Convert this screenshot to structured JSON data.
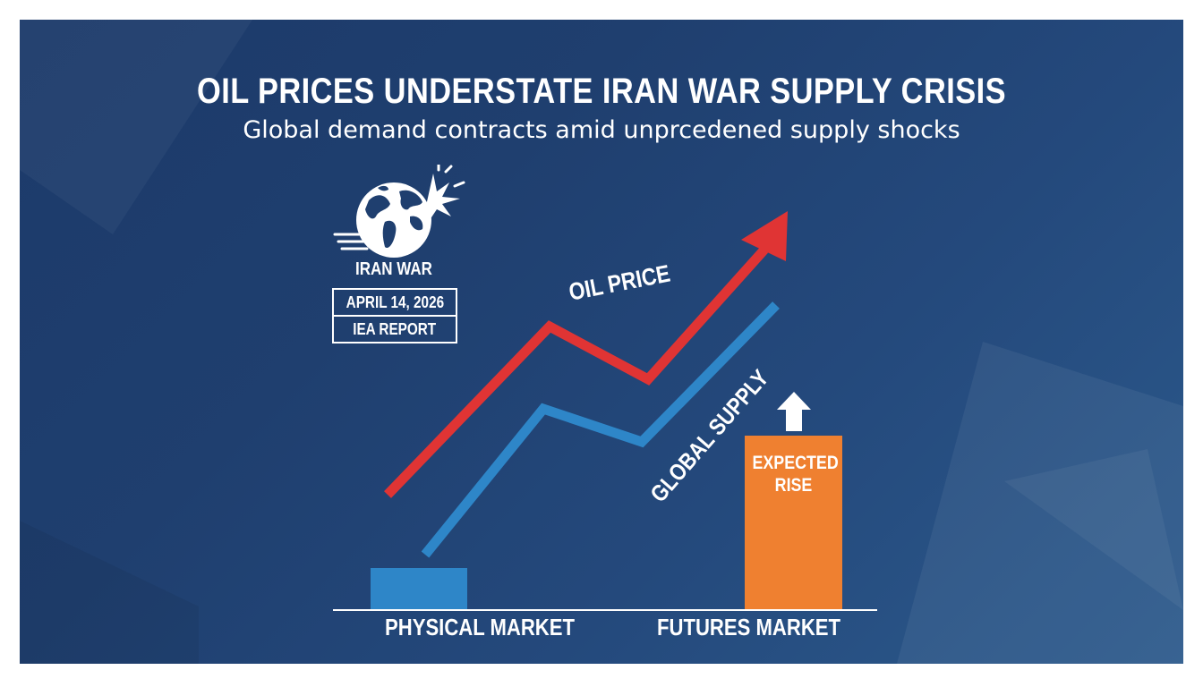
{
  "header": {
    "title": "OIL PRICES UNDERSTATE IRAN WAR SUPPLY CRISIS",
    "subtitle": "Global demand contracts amid unprcedened supply shocks"
  },
  "badge": {
    "icon": "globe-explosion-icon",
    "label": "IRAN WAR",
    "date": "APRIL 14, 2026",
    "source": "IEA REPORT"
  },
  "graphic": {
    "oil_price_label": "OIL PRICE",
    "supply_label": "GLOBAL SUPPLY",
    "futures_bar_label": [
      "EXPECTED",
      "RISE"
    ],
    "categories": [
      "PHYSICAL MARKET",
      "FUTURES MARKET"
    ],
    "colors": {
      "oil_price_line": "#e03434",
      "supply_line": "#2e86c8",
      "physical_bar": "#2e86c8",
      "futures_bar": "#ef8030",
      "background": "#1f3f6f"
    }
  }
}
